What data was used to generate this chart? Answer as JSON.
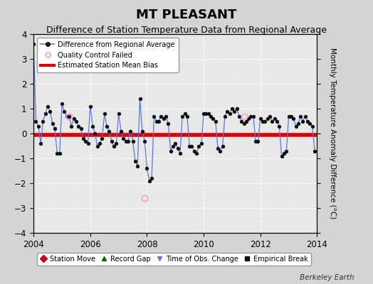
{
  "title": "MT PLEASANT",
  "subtitle": "Difference of Station Temperature Data from Regional Average",
  "ylabel_right": "Monthly Temperature Anomaly Difference (°C)",
  "xlim": [
    2004.0,
    2014.0
  ],
  "ylim": [
    -4,
    4
  ],
  "yticks": [
    -4,
    -3,
    -2,
    -1,
    0,
    1,
    2,
    3,
    4
  ],
  "xticks": [
    2004,
    2006,
    2008,
    2010,
    2012,
    2014
  ],
  "bias_value": -0.05,
  "fig_background_color": "#d4d4d4",
  "plot_background_color": "#e8e8e8",
  "line_color": "#5577ee",
  "marker_color": "#111111",
  "bias_color": "#dd0000",
  "legend1_entries": [
    "Difference from Regional Average",
    "Quality Control Failed",
    "Estimated Station Mean Bias"
  ],
  "legend2_entries": [
    "Station Move",
    "Record Gap",
    "Time of Obs. Change",
    "Empirical Break"
  ],
  "berkeley_earth_label": "Berkeley Earth",
  "title_fontsize": 13,
  "subtitle_fontsize": 9,
  "times": [
    2004.0,
    2004.083,
    2004.167,
    2004.25,
    2004.333,
    2004.417,
    2004.5,
    2004.583,
    2004.667,
    2004.75,
    2004.833,
    2004.917,
    2005.0,
    2005.083,
    2005.167,
    2005.25,
    2005.333,
    2005.417,
    2005.5,
    2005.583,
    2005.667,
    2005.75,
    2005.833,
    2005.917,
    2006.0,
    2006.083,
    2006.167,
    2006.25,
    2006.333,
    2006.417,
    2006.5,
    2006.583,
    2006.667,
    2006.75,
    2006.833,
    2006.917,
    2007.0,
    2007.083,
    2007.167,
    2007.25,
    2007.333,
    2007.417,
    2007.5,
    2007.583,
    2007.667,
    2007.75,
    2007.833,
    2007.917,
    2008.0,
    2008.083,
    2008.167,
    2008.25,
    2008.333,
    2008.417,
    2008.5,
    2008.583,
    2008.667,
    2008.75,
    2008.833,
    2008.917,
    2009.0,
    2009.083,
    2009.167,
    2009.25,
    2009.333,
    2009.417,
    2009.5,
    2009.583,
    2009.667,
    2009.75,
    2009.833,
    2009.917,
    2010.0,
    2010.083,
    2010.167,
    2010.25,
    2010.333,
    2010.417,
    2010.5,
    2010.583,
    2010.667,
    2010.75,
    2010.833,
    2010.917,
    2011.0,
    2011.083,
    2011.167,
    2011.25,
    2011.333,
    2011.417,
    2011.5,
    2011.583,
    2011.667,
    2011.75,
    2011.833,
    2011.917,
    2012.0,
    2012.083,
    2012.167,
    2012.25,
    2012.333,
    2012.417,
    2012.5,
    2012.583,
    2012.667,
    2012.75,
    2012.833,
    2012.917,
    2013.0,
    2013.083,
    2013.167,
    2013.25,
    2013.333,
    2013.417,
    2013.5,
    2013.583,
    2013.667,
    2013.75,
    2013.833,
    2013.917
  ],
  "values": [
    3.6,
    0.5,
    0.3,
    -0.4,
    0.5,
    0.8,
    1.1,
    0.9,
    0.4,
    0.2,
    -0.8,
    -0.8,
    1.2,
    0.9,
    0.7,
    0.7,
    0.3,
    0.6,
    0.5,
    0.3,
    0.2,
    -0.2,
    -0.3,
    -0.4,
    1.1,
    0.3,
    0.0,
    -0.5,
    -0.4,
    -0.2,
    0.8,
    0.3,
    0.1,
    -0.3,
    -0.5,
    -0.4,
    0.8,
    0.1,
    -0.2,
    -0.3,
    -0.3,
    0.1,
    -0.3,
    -1.1,
    -1.3,
    1.4,
    0.1,
    -0.3,
    -1.4,
    -1.9,
    -1.8,
    0.7,
    0.5,
    0.5,
    0.7,
    0.6,
    0.7,
    0.4,
    -0.7,
    -0.5,
    -0.4,
    -0.6,
    -0.8,
    0.7,
    0.8,
    0.7,
    -0.5,
    -0.5,
    -0.7,
    -0.8,
    -0.5,
    -0.4,
    0.8,
    0.8,
    0.8,
    0.7,
    0.6,
    0.5,
    -0.6,
    -0.7,
    -0.5,
    0.7,
    0.9,
    0.8,
    1.0,
    0.9,
    1.0,
    0.7,
    0.5,
    0.4,
    0.5,
    0.6,
    0.7,
    0.7,
    -0.3,
    -0.3,
    0.6,
    0.5,
    0.5,
    0.6,
    0.7,
    0.5,
    0.6,
    0.5,
    0.3,
    -0.9,
    -0.8,
    -0.7,
    0.7,
    0.7,
    0.6,
    0.3,
    0.4,
    0.7,
    0.5,
    0.7,
    0.5,
    0.4,
    0.3,
    -0.7
  ],
  "qc_failed_times": [
    2005.25,
    2007.917,
    2011.417
  ],
  "qc_failed_values": [
    0.7,
    -2.6,
    0.7
  ]
}
